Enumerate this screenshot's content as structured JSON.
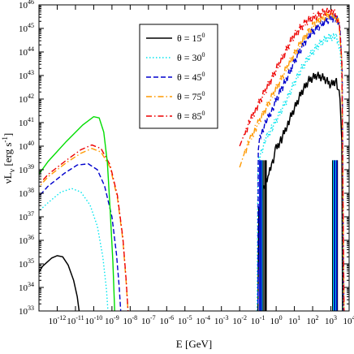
{
  "chart_data": {
    "type": "line",
    "title": "",
    "xlabel": "E [GeV]",
    "ylabel": "νL_ν [erg s^-1]",
    "x_scale": "log",
    "y_scale": "log",
    "xlim_exp": [
      -13,
      4
    ],
    "ylim_exp": [
      33,
      46
    ],
    "x_ticks_exp": [
      -12,
      -11,
      -10,
      -9,
      -8,
      -7,
      -6,
      -5,
      -4,
      -3,
      -2,
      -1,
      0,
      1,
      2,
      3,
      4
    ],
    "y_ticks_exp": [
      33,
      34,
      35,
      36,
      37,
      38,
      39,
      40,
      41,
      42,
      43,
      44,
      45,
      46
    ],
    "tick_base": "10",
    "grid": false,
    "legend_position": "top-center",
    "legend": [
      {
        "label": "θ = 15",
        "sup": "0",
        "color": "#000000",
        "dash": "solid"
      },
      {
        "label": "θ = 30",
        "sup": "0",
        "color": "#00e5ee",
        "dash": "dotted"
      },
      {
        "label": "θ = 45",
        "sup": "0",
        "color": "#0000cd",
        "dash": "dashed"
      },
      {
        "label": "θ = 75",
        "sup": "0",
        "color": "#ff9900",
        "dash": "dashdot"
      },
      {
        "label": "θ = 85",
        "sup": "0",
        "color": "#ee0000",
        "dash": "dashdot"
      }
    ],
    "series": [
      {
        "color": "#000000",
        "dash": "solid",
        "points": [
          [
            -13.2,
            34.4
          ],
          [
            -12.8,
            34.9
          ],
          [
            -12.3,
            35.25
          ],
          [
            -12.0,
            35.35
          ],
          [
            -11.7,
            35.3
          ],
          [
            -11.4,
            34.95
          ],
          [
            -11.1,
            34.3
          ],
          [
            -10.9,
            33.6
          ],
          [
            -10.8,
            33.0
          ]
        ]
      },
      {
        "color": "#00e5ee",
        "dash": "dotted",
        "points": [
          [
            -13.2,
            37.1
          ],
          [
            -12.5,
            37.6
          ],
          [
            -11.8,
            38.05
          ],
          [
            -11.2,
            38.2
          ],
          [
            -10.7,
            38.05
          ],
          [
            -10.2,
            37.5
          ],
          [
            -9.8,
            36.6
          ],
          [
            -9.5,
            35.3
          ],
          [
            -9.3,
            33.9
          ],
          [
            -9.22,
            33.0
          ]
        ]
      },
      {
        "color": "#0000cd",
        "dash": "dashed",
        "points": [
          [
            -13.2,
            37.7
          ],
          [
            -12.5,
            38.3
          ],
          [
            -11.6,
            38.85
          ],
          [
            -10.9,
            39.2
          ],
          [
            -10.3,
            39.25
          ],
          [
            -9.8,
            39.0
          ],
          [
            -9.4,
            38.3
          ],
          [
            -9.0,
            37.0
          ],
          [
            -8.75,
            35.4
          ],
          [
            -8.6,
            34.0
          ],
          [
            -8.52,
            33.0
          ]
        ]
      },
      {
        "color": "#ff9900",
        "dash": "dashdot",
        "points": [
          [
            -13.2,
            38.1
          ],
          [
            -12.5,
            38.7
          ],
          [
            -11.5,
            39.3
          ],
          [
            -10.7,
            39.7
          ],
          [
            -10.1,
            39.9
          ],
          [
            -9.6,
            39.75
          ],
          [
            -9.1,
            39.1
          ],
          [
            -8.7,
            37.8
          ],
          [
            -8.4,
            36.0
          ],
          [
            -8.22,
            34.2
          ],
          [
            -8.12,
            33.0
          ]
        ]
      },
      {
        "color": "#ee0000",
        "dash": "dashdot",
        "points": [
          [
            -13.2,
            38.2
          ],
          [
            -12.5,
            38.8
          ],
          [
            -11.5,
            39.4
          ],
          [
            -10.7,
            39.85
          ],
          [
            -10.1,
            40.05
          ],
          [
            -9.6,
            39.9
          ],
          [
            -9.1,
            39.2
          ],
          [
            -8.7,
            37.9
          ],
          [
            -8.4,
            36.1
          ],
          [
            -8.22,
            34.3
          ],
          [
            -8.12,
            33.0
          ]
        ]
      },
      {
        "color": "#00dd00",
        "dash": "solid",
        "points": [
          [
            -13.2,
            38.6
          ],
          [
            -12.5,
            39.35
          ],
          [
            -11.5,
            40.2
          ],
          [
            -10.6,
            40.9
          ],
          [
            -10.0,
            41.25
          ],
          [
            -9.7,
            41.2
          ],
          [
            -9.45,
            40.6
          ],
          [
            -9.25,
            39.3
          ],
          [
            -9.1,
            37.3
          ],
          [
            -8.95,
            35.1
          ],
          [
            -8.85,
            33.0
          ]
        ]
      },
      {
        "color": "#000000",
        "dash": "solid",
        "jagged": true,
        "points": [
          [
            -1.0,
            33.0
          ],
          [
            -0.95,
            37.2
          ],
          [
            -0.8,
            37.8
          ],
          [
            -0.6,
            38.5
          ],
          [
            -0.4,
            38.8
          ],
          [
            -0.2,
            39.3
          ],
          [
            0.0,
            39.9
          ],
          [
            0.3,
            40.3
          ],
          [
            0.6,
            40.9
          ],
          [
            1.0,
            41.6
          ],
          [
            1.4,
            42.3
          ],
          [
            1.8,
            42.8
          ],
          [
            2.2,
            43.0
          ],
          [
            2.6,
            42.9
          ],
          [
            3.0,
            42.6
          ],
          [
            3.3,
            42.8
          ],
          [
            3.5,
            42.0
          ],
          [
            3.6,
            40.2
          ],
          [
            3.64,
            33.0
          ]
        ]
      },
      {
        "color": "#00e5ee",
        "dash": "dotted",
        "jagged": true,
        "points": [
          [
            -1.05,
            33.0
          ],
          [
            -1.0,
            39.2
          ],
          [
            -0.8,
            39.8
          ],
          [
            -0.5,
            40.4
          ],
          [
            -0.2,
            40.8
          ],
          [
            0.2,
            41.4
          ],
          [
            0.6,
            42.0
          ],
          [
            1.0,
            42.7
          ],
          [
            1.4,
            43.3
          ],
          [
            1.8,
            43.8
          ],
          [
            2.2,
            44.2
          ],
          [
            2.6,
            44.5
          ],
          [
            3.0,
            44.65
          ],
          [
            3.3,
            44.6
          ],
          [
            3.5,
            44.2
          ],
          [
            3.62,
            42.5
          ],
          [
            3.68,
            33.0
          ]
        ]
      },
      {
        "color": "#0000cd",
        "dash": "dashed",
        "jagged": true,
        "points": [
          [
            -1.0,
            33.0
          ],
          [
            -0.98,
            40.0
          ],
          [
            -0.8,
            40.6
          ],
          [
            -0.5,
            41.1
          ],
          [
            -0.2,
            41.6
          ],
          [
            0.2,
            42.3
          ],
          [
            0.6,
            42.9
          ],
          [
            1.0,
            43.6
          ],
          [
            1.4,
            44.2
          ],
          [
            1.8,
            44.7
          ],
          [
            2.2,
            45.0
          ],
          [
            2.6,
            45.25
          ],
          [
            3.0,
            45.45
          ],
          [
            3.3,
            45.4
          ],
          [
            3.5,
            45.0
          ],
          [
            3.62,
            43.2
          ],
          [
            3.7,
            33.0
          ]
        ]
      },
      {
        "color": "#ff9900",
        "dash": "dashdot",
        "jagged": true,
        "points": [
          [
            -2.0,
            39.1
          ],
          [
            -1.7,
            39.8
          ],
          [
            -1.4,
            40.3
          ],
          [
            -1.1,
            40.8
          ],
          [
            -0.7,
            41.4
          ],
          [
            -0.3,
            42.0
          ],
          [
            0.1,
            42.6
          ],
          [
            0.5,
            43.2
          ],
          [
            0.9,
            43.8
          ],
          [
            1.3,
            44.3
          ],
          [
            1.7,
            44.8
          ],
          [
            2.1,
            45.2
          ],
          [
            2.5,
            45.45
          ],
          [
            2.9,
            45.6
          ],
          [
            3.2,
            45.55
          ],
          [
            3.45,
            45.2
          ],
          [
            3.6,
            43.5
          ],
          [
            3.72,
            33.0
          ]
        ]
      },
      {
        "color": "#ee0000",
        "dash": "dashdot",
        "jagged": true,
        "points": [
          [
            -2.0,
            40.0
          ],
          [
            -1.7,
            40.6
          ],
          [
            -1.4,
            41.1
          ],
          [
            -1.1,
            41.6
          ],
          [
            -0.7,
            42.2
          ],
          [
            -0.3,
            42.8
          ],
          [
            0.1,
            43.4
          ],
          [
            0.5,
            44.0
          ],
          [
            0.9,
            44.6
          ],
          [
            1.3,
            45.0
          ],
          [
            1.7,
            45.3
          ],
          [
            2.1,
            45.5
          ],
          [
            2.5,
            45.65
          ],
          [
            2.9,
            45.7
          ],
          [
            3.2,
            45.65
          ],
          [
            3.45,
            45.3
          ],
          [
            3.6,
            43.6
          ],
          [
            3.72,
            33.0
          ]
        ]
      }
    ],
    "drop_lines": [
      {
        "color": "#000000",
        "x": [
          -0.72,
          -0.62,
          -0.55,
          3.1,
          3.22,
          3.35
        ]
      },
      {
        "color": "#00e5ee",
        "x": [
          -0.85,
          -0.78,
          3.15,
          3.28
        ]
      },
      {
        "color": "#0000cd",
        "x": [
          -0.9,
          -0.82,
          3.2,
          3.32
        ]
      }
    ]
  }
}
